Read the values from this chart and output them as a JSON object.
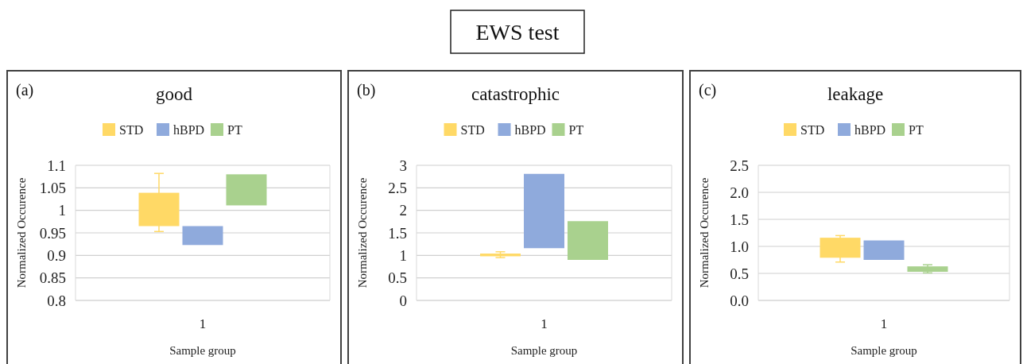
{
  "chart_data": [
    {
      "type": "bar",
      "title": "good",
      "annotations": [
        "EWS test",
        "(a)"
      ],
      "xlabel": "Sample group",
      "ylabel": "Normalized Occurence",
      "categories": [
        null,
        "1",
        null
      ],
      "legend": "top",
      "grid": "y",
      "ylim": [
        0.8,
        1.1
      ],
      "yticks": [
        0.8,
        0.85,
        0.9,
        0.95,
        1,
        1.05,
        1.1
      ],
      "series": [
        {
          "name": "STD",
          "color": "#ffd966",
          "values": [
            0.074,
            null,
            null
          ],
          "base": [
            0.965,
            null,
            null
          ],
          "errors": [
            [
              0.953,
              1.082
            ],
            null,
            null
          ]
        },
        {
          "name": "hBPD",
          "color": "#8faadc",
          "values": [
            null,
            0.042,
            null
          ],
          "base": [
            null,
            0.923,
            null
          ]
        },
        {
          "name": "PT",
          "color": "#a9d18e",
          "values": [
            null,
            null,
            0.069
          ],
          "base": [
            null,
            null,
            1.011
          ]
        }
      ]
    },
    {
      "type": "bar",
      "title": "catastrophic",
      "annotations": [
        "(b)"
      ],
      "xlabel": "Sample group",
      "ylabel": "Normalized Occurence",
      "categories": [
        null,
        "1",
        null
      ],
      "legend": "top",
      "grid": "y",
      "ylim": [
        0,
        3
      ],
      "yticks": [
        0,
        0.5,
        1,
        1.5,
        2,
        2.5,
        3
      ],
      "series": [
        {
          "name": "STD",
          "color": "#ffd966",
          "values": [
            0.06,
            null,
            null
          ],
          "base": [
            0.98,
            null,
            null
          ],
          "errors": [
            [
              0.95,
              1.08
            ],
            null,
            null
          ]
        },
        {
          "name": "hBPD",
          "color": "#8faadc",
          "values": [
            null,
            1.65,
            null
          ],
          "base": [
            null,
            1.16,
            null
          ]
        },
        {
          "name": "PT",
          "color": "#a9d18e",
          "values": [
            null,
            null,
            0.86
          ],
          "base": [
            null,
            null,
            0.9
          ]
        }
      ]
    },
    {
      "type": "bar",
      "title": "leakage",
      "annotations": [
        "(c)"
      ],
      "xlabel": "Sample group",
      "ylabel": "Normalized Occurence",
      "categories": [
        null,
        "1",
        null
      ],
      "legend": "top",
      "grid": "y",
      "ylim": [
        0,
        2.5
      ],
      "yticks": [
        {
          "value": 0,
          "label": "0.0"
        },
        {
          "value": 0.5,
          "label": "0.5"
        },
        {
          "value": 1,
          "label": "1.0"
        },
        {
          "value": 1.5,
          "label": "1.5"
        },
        {
          "value": 2,
          "label": "2.0"
        },
        {
          "value": 2.5,
          "label": "2.5"
        }
      ],
      "series": [
        {
          "name": "STD",
          "color": "#ffd966",
          "values": [
            0.37,
            null,
            null
          ],
          "base": [
            0.79,
            null,
            null
          ],
          "errors": [
            [
              0.71,
              1.2
            ],
            null,
            null
          ]
        },
        {
          "name": "hBPD",
          "color": "#8faadc",
          "values": [
            null,
            0.36,
            null
          ],
          "base": [
            null,
            0.75,
            null
          ]
        },
        {
          "name": "PT",
          "color": "#a9d18e",
          "values": [
            null,
            null,
            0.1
          ],
          "base": [
            null,
            null,
            0.53
          ],
          "errors": [
            null,
            null,
            [
              0.51,
              0.66
            ]
          ]
        }
      ]
    }
  ]
}
